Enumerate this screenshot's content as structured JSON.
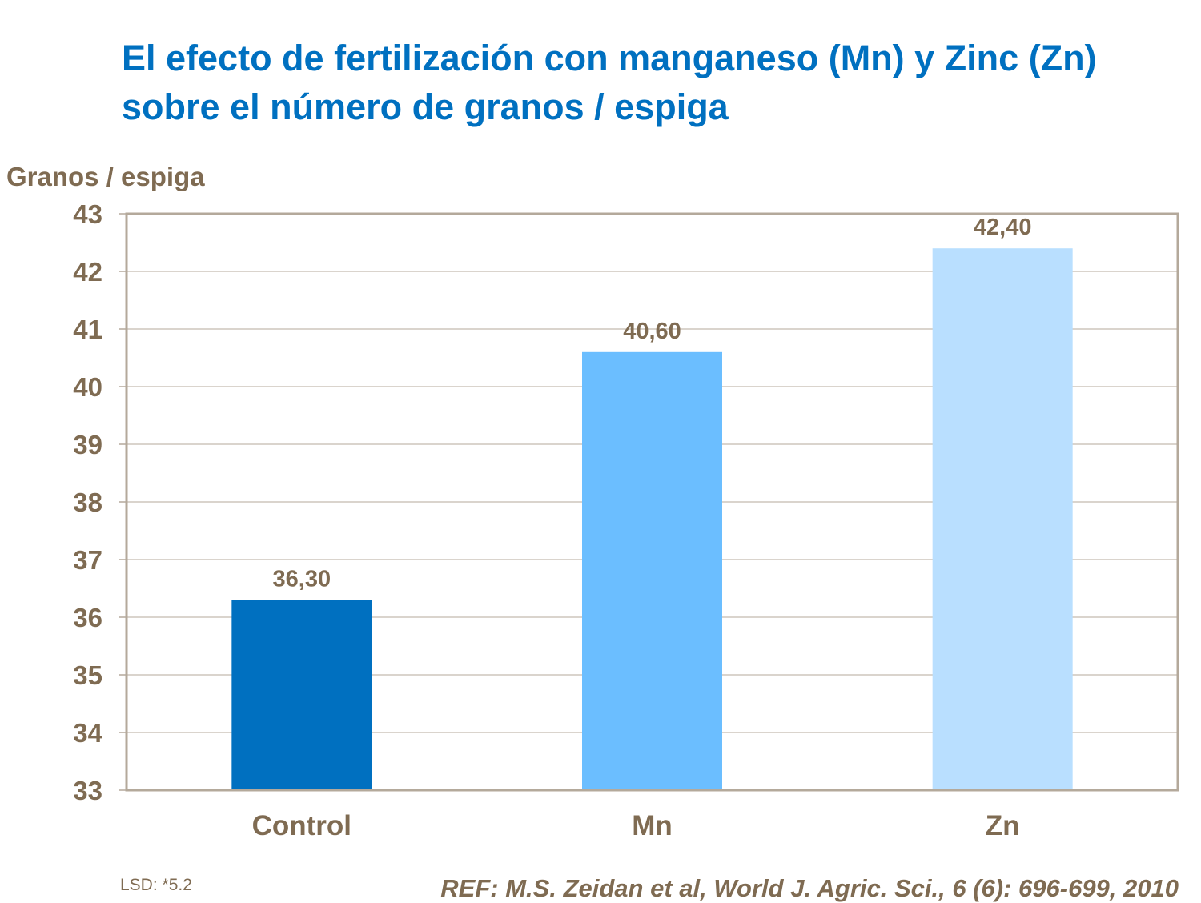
{
  "chart_data": {
    "type": "bar",
    "title": "El efecto de fertilización con manganeso (Mn) y Zinc (Zn) sobre el número de granos / espiga",
    "ylabel": "Granos / espiga",
    "xlabel": "",
    "categories": [
      "Control",
      "Mn",
      "Zn"
    ],
    "values": [
      36.3,
      40.6,
      42.4
    ],
    "data_labels": [
      "36,30",
      "40,60",
      "42,40"
    ],
    "ylim": [
      33,
      43
    ],
    "yticks": [
      33,
      34,
      35,
      36,
      37,
      38,
      39,
      40,
      41,
      42,
      43
    ],
    "grid": true,
    "bar_colors": [
      "#0070C0",
      "#6BBEFF",
      "#B9DFFF"
    ]
  },
  "colors": {
    "title": "#0070C0",
    "text": "#7F6B52",
    "axis": "#B4A99B",
    "grid": "#B4A99B"
  },
  "footer": {
    "lsd": "LSD: *5.2",
    "reference": "REF: M.S. Zeidan et al, World J. Agric. Sci., 6 (6): 696-699, 2010"
  }
}
